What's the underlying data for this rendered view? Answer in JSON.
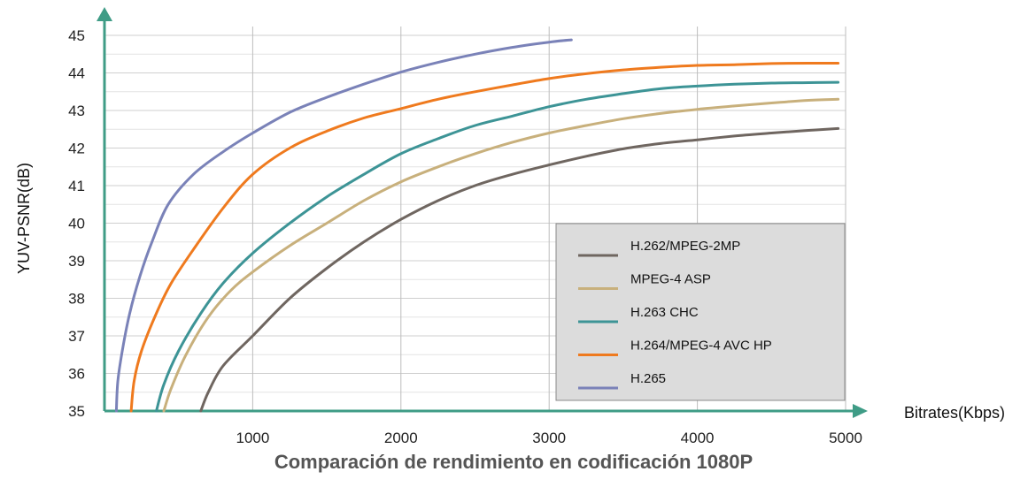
{
  "chart_data": {
    "type": "line",
    "title": "Comparación de rendimiento en codificación 1080P",
    "xlabel": "Bitrates(Kbps)",
    "ylabel": "YUV-PSNR(dB)",
    "xlim": [
      0,
      5000
    ],
    "ylim": [
      35,
      45
    ],
    "x_ticks": [
      "1000",
      "2000",
      "3000",
      "4000",
      "5000"
    ],
    "y_ticks": [
      "35",
      "36",
      "37",
      "38",
      "39",
      "40",
      "41",
      "42",
      "43",
      "44",
      "45"
    ],
    "grid": true,
    "legend_position": "bottom-right",
    "series": [
      {
        "name": "H.262/MPEG-2MP",
        "color": "#6f6660",
        "points": [
          [
            650,
            35.0
          ],
          [
            700,
            35.5
          ],
          [
            800,
            36.2
          ],
          [
            1000,
            37.0
          ],
          [
            1250,
            38.0
          ],
          [
            1500,
            38.8
          ],
          [
            1750,
            39.5
          ],
          [
            2000,
            40.1
          ],
          [
            2250,
            40.6
          ],
          [
            2500,
            41.0
          ],
          [
            2750,
            41.3
          ],
          [
            3000,
            41.55
          ],
          [
            3250,
            41.78
          ],
          [
            3500,
            41.98
          ],
          [
            3750,
            42.12
          ],
          [
            4000,
            42.22
          ],
          [
            4250,
            42.32
          ],
          [
            4500,
            42.4
          ],
          [
            4750,
            42.47
          ],
          [
            4950,
            42.52
          ]
        ]
      },
      {
        "name": "MPEG-4 ASP",
        "color": "#c8b07c",
        "points": [
          [
            400,
            35.0
          ],
          [
            450,
            35.6
          ],
          [
            550,
            36.5
          ],
          [
            700,
            37.5
          ],
          [
            850,
            38.2
          ],
          [
            1000,
            38.7
          ],
          [
            1250,
            39.4
          ],
          [
            1500,
            40.0
          ],
          [
            1750,
            40.6
          ],
          [
            2000,
            41.1
          ],
          [
            2250,
            41.5
          ],
          [
            2500,
            41.85
          ],
          [
            2750,
            42.15
          ],
          [
            3000,
            42.4
          ],
          [
            3250,
            42.6
          ],
          [
            3500,
            42.78
          ],
          [
            3750,
            42.92
          ],
          [
            4000,
            43.03
          ],
          [
            4250,
            43.12
          ],
          [
            4500,
            43.2
          ],
          [
            4750,
            43.27
          ],
          [
            4950,
            43.3
          ]
        ]
      },
      {
        "name": "H.263 CHC",
        "color": "#3d9496",
        "points": [
          [
            350,
            35.0
          ],
          [
            400,
            35.7
          ],
          [
            500,
            36.6
          ],
          [
            650,
            37.6
          ],
          [
            800,
            38.4
          ],
          [
            1000,
            39.2
          ],
          [
            1250,
            40.0
          ],
          [
            1500,
            40.7
          ],
          [
            1750,
            41.3
          ],
          [
            2000,
            41.85
          ],
          [
            2250,
            42.25
          ],
          [
            2500,
            42.6
          ],
          [
            2750,
            42.85
          ],
          [
            3000,
            43.1
          ],
          [
            3250,
            43.3
          ],
          [
            3500,
            43.45
          ],
          [
            3750,
            43.58
          ],
          [
            4000,
            43.65
          ],
          [
            4250,
            43.7
          ],
          [
            4500,
            43.73
          ],
          [
            4750,
            43.74
          ],
          [
            4950,
            43.75
          ]
        ]
      },
      {
        "name": "H.264/MPEG-4 AVC HP",
        "color": "#ef7a1e",
        "points": [
          [
            180,
            35.0
          ],
          [
            200,
            35.8
          ],
          [
            250,
            36.6
          ],
          [
            350,
            37.6
          ],
          [
            450,
            38.4
          ],
          [
            600,
            39.3
          ],
          [
            800,
            40.4
          ],
          [
            1000,
            41.3
          ],
          [
            1250,
            42.0
          ],
          [
            1500,
            42.45
          ],
          [
            1750,
            42.8
          ],
          [
            2000,
            43.05
          ],
          [
            2250,
            43.3
          ],
          [
            2500,
            43.5
          ],
          [
            2750,
            43.68
          ],
          [
            3000,
            43.85
          ],
          [
            3250,
            43.98
          ],
          [
            3500,
            44.08
          ],
          [
            3750,
            44.15
          ],
          [
            4000,
            44.2
          ],
          [
            4250,
            44.22
          ],
          [
            4500,
            44.25
          ],
          [
            4750,
            44.26
          ],
          [
            4950,
            44.26
          ]
        ]
      },
      {
        "name": "H.265",
        "color": "#7a82b8",
        "points": [
          [
            80,
            35.0
          ],
          [
            90,
            35.8
          ],
          [
            120,
            36.6
          ],
          [
            170,
            37.6
          ],
          [
            240,
            38.6
          ],
          [
            320,
            39.5
          ],
          [
            430,
            40.5
          ],
          [
            600,
            41.3
          ],
          [
            800,
            41.9
          ],
          [
            1000,
            42.4
          ],
          [
            1250,
            42.95
          ],
          [
            1500,
            43.35
          ],
          [
            1750,
            43.7
          ],
          [
            2000,
            44.02
          ],
          [
            2250,
            44.28
          ],
          [
            2500,
            44.5
          ],
          [
            2750,
            44.68
          ],
          [
            3000,
            44.82
          ],
          [
            3150,
            44.88
          ]
        ]
      }
    ]
  }
}
